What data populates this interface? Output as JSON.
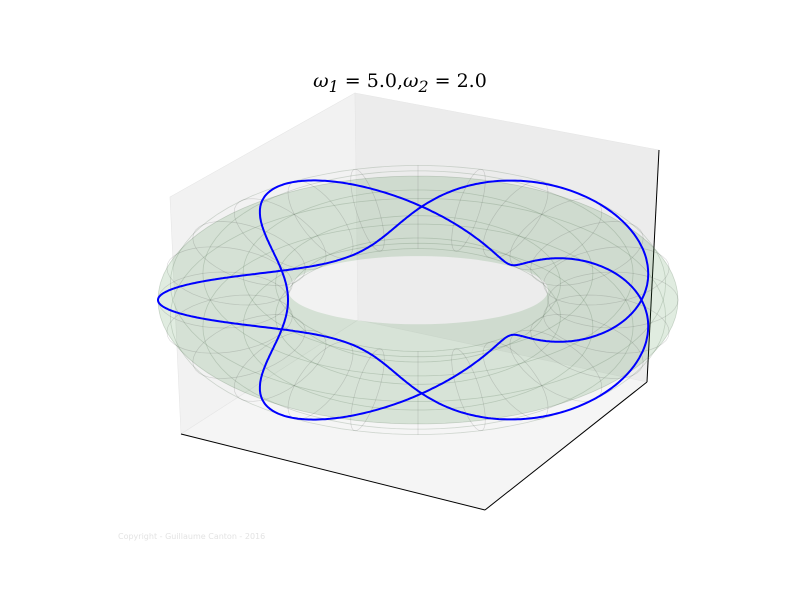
{
  "chart_data": {
    "type": "line",
    "projection": "3d",
    "title_parts": {
      "w1_symbol": "ω",
      "w1_sub": "1",
      "w1_value": "5.0",
      "sep": ",",
      "w2_symbol": "ω",
      "w2_sub": "2",
      "w2_value": "2.0"
    },
    "omega1": 5.0,
    "omega2": 2.0,
    "surface": {
      "shape": "torus",
      "R": 3,
      "r": 1,
      "color": "#2e7d32",
      "opacity": 0.15
    },
    "curve": {
      "color": "#0000ff"
    },
    "xlim": [
      -4,
      4
    ],
    "ylim": [
      -4,
      4
    ],
    "zlim": [
      -1,
      1
    ],
    "grid": false
  },
  "copyright": "Copyright - Guillaume Canton - 2016"
}
